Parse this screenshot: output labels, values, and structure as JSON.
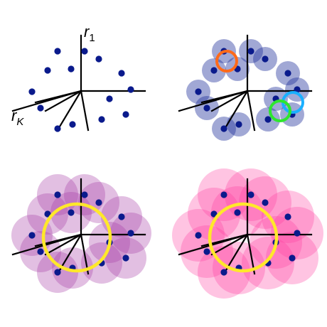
{
  "labels": {
    "r1_main": "r",
    "r1_sub": "1",
    "rk_main": "r",
    "rk_sub": "K"
  },
  "colors": {
    "point": "#0a1a8c",
    "axis": "#000000",
    "blue_disk": "#1f2f9a",
    "violet_disk": "#a83ca8",
    "pink_disk": "#ff3ca0",
    "orange_ring": "#ff6a1a",
    "cyan_ring": "#1ab0ff",
    "green_ring": "#2ee62e",
    "yellow_ring": "#ffe82a"
  }
}
